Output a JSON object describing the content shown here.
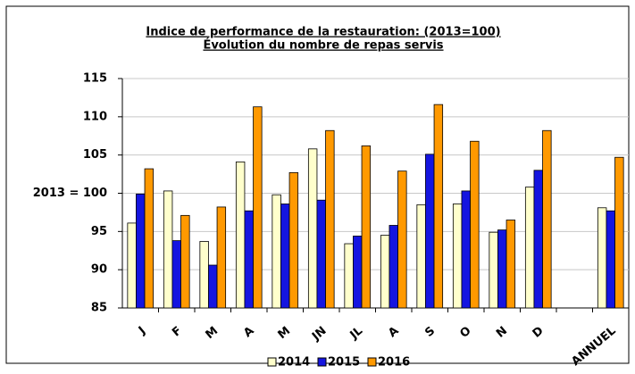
{
  "chart_data": {
    "type": "bar",
    "title": "Indice de performance de la restauration: (2013=100)",
    "subtitle": "Évolution du nombre de repas servis",
    "categories": [
      "J",
      "F",
      "M",
      "A",
      "M",
      "JN",
      "JL",
      "A",
      "S",
      "O",
      "N",
      "D",
      null,
      "ANNUEL"
    ],
    "series": [
      {
        "name": "2014",
        "color": "#ffffcc",
        "values": [
          96.1,
          100.3,
          93.7,
          104.1,
          99.8,
          105.8,
          93.4,
          94.5,
          98.5,
          98.6,
          94.9,
          100.8,
          null,
          98.1
        ]
      },
      {
        "name": "2015",
        "color": "#1515e0",
        "values": [
          99.9,
          93.8,
          90.6,
          97.7,
          98.6,
          99.1,
          94.4,
          95.8,
          105.1,
          100.3,
          95.2,
          103.0,
          null,
          97.7
        ]
      },
      {
        "name": "2016",
        "color": "#ff9900",
        "values": [
          103.2,
          97.1,
          98.2,
          111.3,
          102.7,
          108.2,
          106.2,
          102.9,
          111.6,
          106.8,
          96.5,
          108.2,
          null,
          104.7
        ]
      }
    ],
    "ylim": [
      85,
      115
    ],
    "yticks": [
      85,
      90,
      95,
      {
        "value": 100,
        "label": "2013 = 100"
      },
      105,
      110,
      115
    ],
    "grid": true,
    "legend": "bottom"
  }
}
